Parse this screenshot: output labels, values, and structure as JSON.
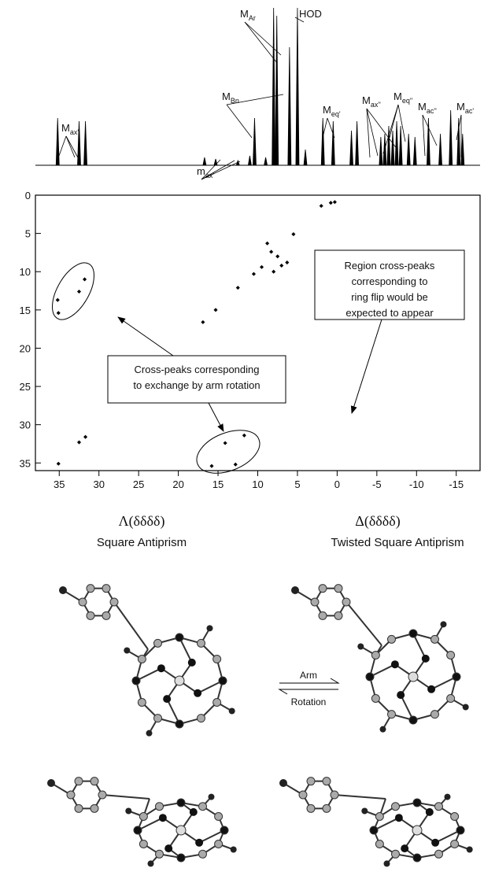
{
  "chart_data": [
    {
      "type": "spectrum",
      "x": [
        35.2,
        32.5,
        31.7,
        16.7,
        15.3,
        12.5,
        11,
        10.4,
        9,
        8,
        7.6,
        6,
        5,
        4,
        1.8,
        0.5,
        -1.8,
        -2.5,
        -5.5,
        -6,
        -6.5,
        -7,
        -7.5,
        -8,
        -9,
        -9.8,
        -11.5,
        -13,
        -14.3,
        -15.3,
        -15.8
      ],
      "values": [
        30,
        28,
        28,
        5,
        4,
        3,
        6,
        30,
        5,
        100,
        95,
        75,
        100,
        10,
        30,
        28,
        22,
        28,
        18,
        20,
        25,
        22,
        28,
        25,
        20,
        18,
        30,
        20,
        35,
        30,
        20
      ],
      "xlim": [
        38,
        -18
      ],
      "ylim": [
        0,
        100
      ],
      "annotations": [
        {
          "text": "M",
          "sub": "ax'"
        },
        {
          "text": "m",
          "sub": "ax'"
        },
        {
          "text": "M",
          "sub": "Bn"
        },
        {
          "text": "M",
          "sub": "Ar"
        },
        {
          "text": "HOD"
        },
        {
          "text": "M",
          "sub": "eq'"
        },
        {
          "text": "M",
          "sub": "ax''"
        },
        {
          "text": "M",
          "sub": "eq''"
        },
        {
          "text": "M",
          "sub": "ac''"
        },
        {
          "text": "M",
          "sub": "ac'"
        }
      ]
    },
    {
      "type": "scatter",
      "x": [
        35.1,
        32.5,
        31.7,
        16.9,
        15.3,
        12.5,
        10.5,
        9.5,
        8.3,
        7.5,
        8.8,
        7.0,
        6.3,
        8.0,
        5.5,
        2.0,
        0.8,
        0.3,
        31.8,
        32.5,
        35.2,
        35.1,
        14.1,
        11.7,
        15.8,
        12.8
      ],
      "y": [
        35.1,
        32.3,
        31.6,
        16.6,
        15.0,
        12.1,
        10.3,
        9.4,
        7.4,
        8.0,
        6.3,
        9.2,
        8.8,
        10.0,
        5.1,
        1.4,
        1.0,
        0.9,
        11.0,
        12.6,
        13.7,
        15.4,
        32.4,
        31.4,
        35.4,
        35.2
      ],
      "color": "#000000",
      "xlim": [
        38,
        -18
      ],
      "ylim": [
        0,
        36
      ],
      "xticks": [
        35,
        30,
        25,
        20,
        15,
        10,
        5,
        0,
        -5,
        -10,
        -15
      ],
      "yticks": [
        0,
        5,
        10,
        15,
        20,
        25,
        30,
        35
      ],
      "annotations": [
        [
          "Region cross-peaks",
          "corresponding to",
          "ring flip would be",
          "expected to appear"
        ],
        [
          "Cross-peaks corresponding",
          "to exchange by arm rotation"
        ]
      ]
    }
  ],
  "figure": {
    "left_symbol": "Λ(δδδδ)",
    "left_name": "Square Antiprism",
    "right_symbol": "Δ(δδδδ)",
    "right_name": "Twisted Square Antiprism",
    "arrow_top": "Arm",
    "arrow_bottom": "Rotation"
  }
}
